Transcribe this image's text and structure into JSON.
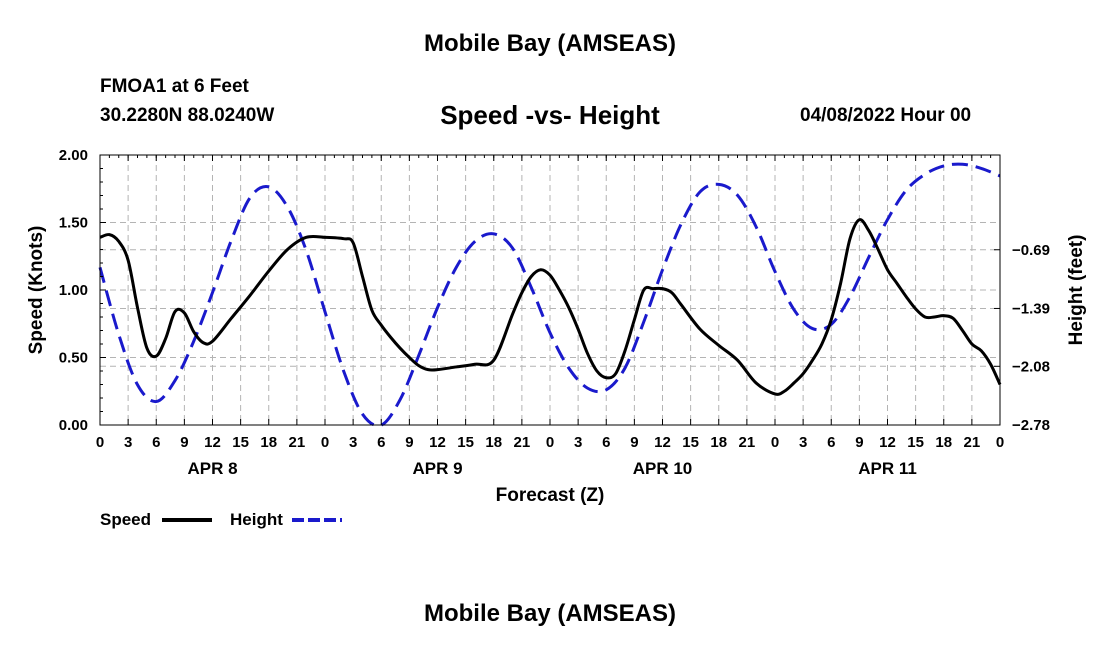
{
  "title": "Mobile Bay (AMSEAS)",
  "station": "FMOA1 at 6 Feet",
  "coordinates": "30.2280N  88.0240W",
  "subtitle": "Speed -vs- Height",
  "datetime": "04/08/2022 Hour 00",
  "bottom_title": "Mobile Bay (AMSEAS)",
  "colors": {
    "speed": "#000000",
    "height": "#1a1acc",
    "grid": "#b4b4b4"
  },
  "chart_data": {
    "type": "line",
    "xlabel": "Forecast (Z)",
    "ylabel": "Speed (Knots)",
    "ylabel_right": "Height (feet)",
    "x_range": [
      0,
      96
    ],
    "ylim": [
      0,
      2.0
    ],
    "ylim_right": [
      -2.78,
      0.44
    ],
    "x_ticks": [
      0,
      3,
      6,
      9,
      12,
      15,
      18,
      21,
      24,
      27,
      30,
      33,
      36,
      39,
      42,
      45,
      48,
      51,
      54,
      57,
      60,
      63,
      66,
      69,
      72,
      75,
      78,
      81,
      84,
      87,
      90,
      93,
      96
    ],
    "x_tick_labels": [
      "0",
      "3",
      "6",
      "9",
      "12",
      "15",
      "18",
      "21",
      "0",
      "3",
      "6",
      "9",
      "12",
      "15",
      "18",
      "21",
      "0",
      "3",
      "6",
      "9",
      "12",
      "15",
      "18",
      "21",
      "0",
      "3",
      "6",
      "9",
      "12",
      "15",
      "18",
      "21",
      "0"
    ],
    "day_labels": [
      {
        "x": 12,
        "label": "APR 8"
      },
      {
        "x": 36,
        "label": "APR 9"
      },
      {
        "x": 60,
        "label": "APR 10"
      },
      {
        "x": 84,
        "label": "APR 11"
      }
    ],
    "y_ticks": [
      0,
      0.5,
      1.0,
      1.5,
      2.0
    ],
    "y_tick_labels": [
      "0.00",
      "0.50",
      "1.00",
      "1.50",
      "2.00"
    ],
    "y_right_ticks": [
      -0.69,
      -1.39,
      -2.08,
      -2.78
    ],
    "y_right_tick_labels": [
      "−0.69",
      "−1.39",
      "−2.08",
      "−2.78"
    ],
    "series": [
      {
        "name": "Speed",
        "axis": "left",
        "style": "solid",
        "x": [
          0,
          1,
          2,
          3,
          4,
          5,
          6,
          7,
          8,
          9,
          10,
          11,
          12,
          14,
          16,
          18,
          20,
          22,
          24,
          26,
          27,
          28,
          29,
          30,
          31,
          32,
          33,
          34,
          35,
          36,
          38,
          40,
          42,
          44,
          45,
          46,
          47,
          48,
          49,
          50,
          51,
          52,
          53,
          54,
          55,
          56,
          57,
          58,
          59,
          60,
          61,
          62,
          64,
          66,
          68,
          70,
          72,
          73,
          74,
          75,
          76,
          77,
          78,
          79,
          80,
          81,
          82,
          83,
          84,
          85,
          86,
          87,
          88,
          89,
          90,
          91,
          92,
          93,
          94,
          95,
          96
        ],
        "values": [
          1.39,
          1.41,
          1.36,
          1.22,
          0.87,
          0.57,
          0.51,
          0.64,
          0.84,
          0.83,
          0.69,
          0.61,
          0.62,
          0.79,
          0.96,
          1.14,
          1.3,
          1.39,
          1.39,
          1.38,
          1.35,
          1.1,
          0.85,
          0.74,
          0.65,
          0.57,
          0.5,
          0.44,
          0.41,
          0.41,
          0.43,
          0.45,
          0.48,
          0.82,
          0.98,
          1.1,
          1.15,
          1.11,
          1.0,
          0.87,
          0.71,
          0.53,
          0.4,
          0.35,
          0.38,
          0.55,
          0.78,
          1.0,
          1.01,
          1.01,
          0.98,
          0.89,
          0.71,
          0.59,
          0.48,
          0.31,
          0.23,
          0.25,
          0.31,
          0.38,
          0.48,
          0.6,
          0.78,
          1.05,
          1.38,
          1.52,
          1.44,
          1.3,
          1.15,
          1.05,
          0.95,
          0.86,
          0.8,
          0.8,
          0.81,
          0.79,
          0.7,
          0.6,
          0.55,
          0.45,
          0.3
        ]
      },
      {
        "name": "Height",
        "axis": "right",
        "style": "dashed",
        "x": [
          0,
          2,
          4,
          6,
          8,
          10,
          12,
          14,
          16,
          18,
          20,
          22,
          24,
          26,
          28,
          30,
          32,
          34,
          36,
          38,
          40,
          42,
          44,
          46,
          48,
          50,
          52,
          54,
          56,
          58,
          60,
          62,
          64,
          66,
          68,
          70,
          72,
          74,
          76,
          78,
          80,
          82,
          84,
          86,
          88,
          90,
          92,
          94,
          96
        ],
        "values": [
          -0.9,
          -1.7,
          -2.3,
          -2.5,
          -2.25,
          -1.78,
          -1.2,
          -0.58,
          -0.07,
          0.06,
          -0.18,
          -0.7,
          -1.43,
          -2.14,
          -2.65,
          -2.78,
          -2.48,
          -1.95,
          -1.38,
          -0.9,
          -0.59,
          -0.5,
          -0.67,
          -1.14,
          -1.68,
          -2.1,
          -2.34,
          -2.36,
          -2.1,
          -1.55,
          -0.93,
          -0.38,
          0.0,
          0.09,
          -0.04,
          -0.42,
          -0.95,
          -1.4,
          -1.63,
          -1.58,
          -1.25,
          -0.78,
          -0.33,
          0.02,
          0.21,
          0.31,
          0.33,
          0.28,
          0.19
        ]
      }
    ],
    "legend": [
      {
        "label": "Speed",
        "style": "solid"
      },
      {
        "label": "Height",
        "style": "dashed"
      }
    ],
    "legend_position": "bottom-left",
    "grid": true
  }
}
